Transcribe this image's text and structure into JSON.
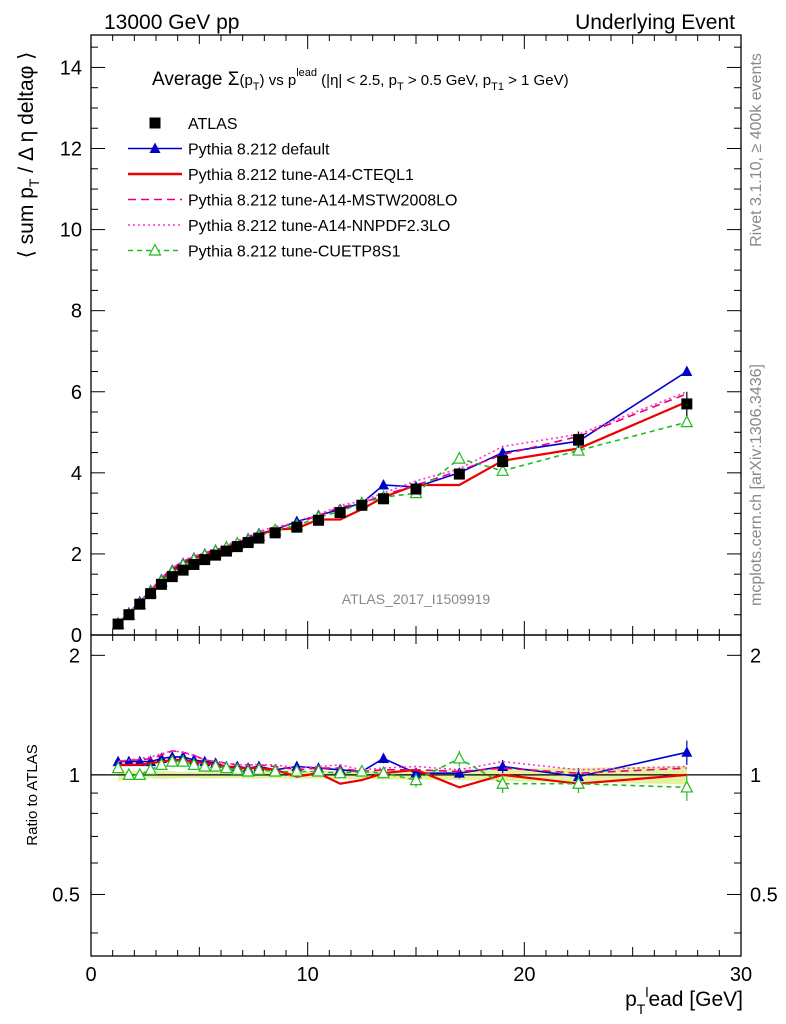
{
  "header": {
    "left": "13000 GeV pp",
    "right": "Underlying Event"
  },
  "side_text": {
    "top": "Rivet 3.1.10, ≥ 400k events",
    "bottom": "mcplots.cern.ch [arXiv:1306.3436]"
  },
  "watermark": "ATLAS_2017_I1509919",
  "chart_data": {
    "type": "line",
    "title": {
      "prefix": "Average ",
      "sigma": "Σ",
      "open": "(p",
      "sub_t": "T",
      "close": ")",
      "vs": " vs p",
      "lead_sup": "lead",
      "cuts1": " (|η| < 2.5, p",
      "cuts2": " > 0.5 GeV, p",
      "sub_t1": "T1",
      "cuts3": " > 1 GeV)"
    },
    "ylabel": {
      "a": "⟨ sum p",
      "sub_t": "T",
      "b": " / Δ η deltaφ ⟩"
    },
    "xlabel": {
      "a": "p",
      "sub_t": "T",
      "sup_l": "l",
      "b": "ead [GeV]"
    },
    "ratio_ylabel": "Ratio to ATLAS",
    "xlim": [
      0,
      30
    ],
    "ylim": [
      0,
      14.8
    ],
    "ratio_ylim": [
      0.35,
      2.25
    ],
    "main_ticks": [
      "0",
      "2",
      "4",
      "6",
      "8",
      "10",
      "12",
      "14"
    ],
    "ratio_ticks": [
      "0.5",
      "1",
      "2"
    ],
    "x_ticks": [
      "0",
      "10",
      "20",
      "30"
    ],
    "x": [
      1.25,
      1.75,
      2.25,
      2.75,
      3.25,
      3.75,
      4.25,
      4.75,
      5.25,
      5.75,
      6.25,
      6.75,
      7.25,
      7.75,
      8.5,
      9.5,
      10.5,
      11.5,
      12.5,
      13.5,
      15.0,
      17.0,
      19.0,
      22.5,
      27.5
    ],
    "series": [
      {
        "name": "ATLAS",
        "values": [
          0.27,
          0.5,
          0.76,
          1.02,
          1.25,
          1.44,
          1.6,
          1.74,
          1.86,
          1.97,
          2.07,
          2.18,
          2.28,
          2.39,
          2.52,
          2.66,
          2.83,
          3.02,
          3.2,
          3.36,
          3.6,
          3.97,
          4.28,
          4.82,
          5.7
        ],
        "ratio": [
          1,
          1,
          1,
          1,
          1,
          1,
          1,
          1,
          1,
          1,
          1,
          1,
          1,
          1,
          1,
          1,
          1,
          1,
          1,
          1,
          1,
          1,
          1,
          1,
          1
        ],
        "color": "#000000",
        "dash": "none",
        "marker": "square",
        "errors": [
          0.01,
          0.01,
          0.02,
          0.02,
          0.03,
          0.03,
          0.03,
          0.03,
          0.04,
          0.04,
          0.04,
          0.04,
          0.05,
          0.05,
          0.05,
          0.06,
          0.06,
          0.07,
          0.08,
          0.09,
          0.1,
          0.12,
          0.15,
          0.2,
          0.3
        ]
      },
      {
        "name": "Pythia 8.212 default",
        "values": [
          0.29,
          0.55,
          0.82,
          1.1,
          1.37,
          1.6,
          1.77,
          1.9,
          2.0,
          2.1,
          2.18,
          2.28,
          2.38,
          2.5,
          2.6,
          2.8,
          2.95,
          3.1,
          3.25,
          3.7,
          3.65,
          4.0,
          4.5,
          4.78,
          6.5
        ],
        "ratio": [
          1.08,
          1.08,
          1.08,
          1.08,
          1.1,
          1.11,
          1.11,
          1.09,
          1.08,
          1.07,
          1.05,
          1.05,
          1.04,
          1.05,
          1.03,
          1.05,
          1.04,
          1.03,
          1.02,
          1.1,
          1.01,
          1.01,
          1.05,
          0.99,
          1.14
        ],
        "color": "#0000cc",
        "dash": "none",
        "marker": "triangle",
        "ratio_errors": [
          0.02,
          0.02,
          0.02,
          0.02,
          0.02,
          0.02,
          0.02,
          0.02,
          0.02,
          0.02,
          0.02,
          0.02,
          0.02,
          0.02,
          0.02,
          0.02,
          0.02,
          0.02,
          0.03,
          0.03,
          0.03,
          0.03,
          0.04,
          0.05,
          0.08
        ]
      },
      {
        "name": "Pythia 8.212 tune-A14-CTEQL1",
        "values": [
          0.28,
          0.53,
          0.8,
          1.08,
          1.35,
          1.56,
          1.74,
          1.87,
          1.98,
          2.08,
          2.17,
          2.26,
          2.35,
          2.47,
          2.6,
          2.63,
          2.85,
          2.85,
          3.1,
          3.4,
          3.7,
          3.7,
          4.3,
          4.6,
          5.75
        ],
        "ratio": [
          1.06,
          1.06,
          1.06,
          1.07,
          1.08,
          1.09,
          1.09,
          1.08,
          1.07,
          1.06,
          1.05,
          1.04,
          1.04,
          1.04,
          1.03,
          0.99,
          1.01,
          0.95,
          0.97,
          1.01,
          1.03,
          0.93,
          1.0,
          0.95,
          1.0
        ],
        "color": "#ee0000",
        "dash": "none",
        "marker": "none"
      },
      {
        "name": "Pythia 8.212 tune-A14-MSTW2008LO",
        "values": [
          0.29,
          0.55,
          0.82,
          1.1,
          1.4,
          1.65,
          1.82,
          1.93,
          2.02,
          2.12,
          2.2,
          2.3,
          2.42,
          2.55,
          2.65,
          2.75,
          2.95,
          3.15,
          3.25,
          3.45,
          3.7,
          4.05,
          4.45,
          4.9,
          5.95
        ],
        "ratio": [
          1.08,
          1.09,
          1.09,
          1.1,
          1.12,
          1.15,
          1.14,
          1.12,
          1.09,
          1.08,
          1.07,
          1.06,
          1.06,
          1.06,
          1.05,
          1.03,
          1.04,
          1.04,
          1.02,
          1.03,
          1.03,
          1.02,
          1.04,
          1.01,
          1.04
        ],
        "color": "#e8007a",
        "dash": "8,5",
        "marker": "none"
      },
      {
        "name": "Pythia 8.212 tune-A14-NNPDF2.3LO",
        "values": [
          0.29,
          0.55,
          0.83,
          1.11,
          1.41,
          1.65,
          1.83,
          1.95,
          2.03,
          2.13,
          2.22,
          2.32,
          2.43,
          2.55,
          2.67,
          2.77,
          2.97,
          3.2,
          3.3,
          3.5,
          3.8,
          4.1,
          4.65,
          4.95,
          6.0
        ],
        "ratio": [
          1.08,
          1.09,
          1.1,
          1.11,
          1.13,
          1.15,
          1.14,
          1.12,
          1.09,
          1.08,
          1.07,
          1.06,
          1.06,
          1.06,
          1.06,
          1.04,
          1.05,
          1.06,
          1.03,
          1.04,
          1.05,
          1.03,
          1.08,
          1.03,
          1.05
        ],
        "color": "#ff33cc",
        "dash": "2,3",
        "marker": "none"
      },
      {
        "name": "Pythia 8.212 tune-CUETP8S1",
        "values": [
          0.28,
          0.5,
          0.76,
          1.05,
          1.32,
          1.55,
          1.72,
          1.85,
          1.96,
          2.06,
          2.15,
          2.25,
          2.33,
          2.45,
          2.58,
          2.7,
          2.9,
          3.05,
          3.25,
          3.4,
          3.5,
          4.35,
          4.05,
          4.55,
          5.25
        ],
        "ratio": [
          1.04,
          1.0,
          1.0,
          1.03,
          1.06,
          1.08,
          1.08,
          1.06,
          1.05,
          1.05,
          1.04,
          1.03,
          1.02,
          1.03,
          1.02,
          1.02,
          1.02,
          1.01,
          1.02,
          1.01,
          0.97,
          1.1,
          0.95,
          0.95,
          0.93
        ],
        "color": "#22bb22",
        "dash": "5,4",
        "marker": "open-triangle",
        "ratio_errors": [
          0.02,
          0.02,
          0.02,
          0.02,
          0.02,
          0.02,
          0.02,
          0.02,
          0.02,
          0.02,
          0.02,
          0.02,
          0.02,
          0.02,
          0.02,
          0.02,
          0.02,
          0.02,
          0.03,
          0.03,
          0.04,
          0.05,
          0.05,
          0.05,
          0.07
        ]
      }
    ],
    "band_color": "#ddee88"
  }
}
